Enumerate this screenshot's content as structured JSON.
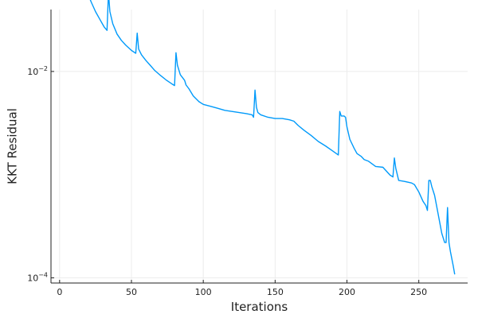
{
  "chart_data": {
    "type": "line",
    "xlabel": "Iterations",
    "ylabel": "KKT Residual",
    "xlim": [
      -6,
      284
    ],
    "ylim_log10": [
      -4.05,
      -1.4
    ],
    "y_scale": "log",
    "grid": true,
    "legend": "none",
    "x_ticks": [
      0,
      50,
      100,
      150,
      200,
      250
    ],
    "x_tick_labels": [
      "0",
      "50",
      "100",
      "150",
      "200",
      "250"
    ],
    "y_ticks": [
      {
        "value": 0.01,
        "base": "10",
        "exponent": "−2"
      },
      {
        "value": 0.0001,
        "base": "10",
        "exponent": "−4"
      }
    ],
    "series": [
      {
        "color": "#009AFA",
        "x": [
          1,
          3,
          6,
          8,
          10,
          12,
          14,
          15,
          16,
          18,
          20,
          22,
          25,
          28,
          31,
          33,
          34,
          35,
          37,
          40,
          43,
          46,
          50,
          53,
          54,
          55,
          57,
          60,
          63,
          66,
          70,
          74,
          78,
          80,
          81,
          82,
          84,
          87,
          88,
          90,
          93,
          97,
          100,
          105,
          110,
          115,
          120,
          125,
          130,
          134,
          135,
          136,
          137,
          138,
          140,
          145,
          150,
          155,
          160,
          163,
          166,
          170,
          175,
          180,
          185,
          190,
          194,
          195,
          196,
          198,
          199,
          200,
          202,
          205,
          207,
          210,
          212,
          215,
          220,
          225,
          230,
          232,
          233,
          234,
          236,
          238,
          240,
          245,
          247,
          250,
          253,
          255,
          256,
          257,
          258,
          259,
          261,
          263,
          266,
          268,
          269,
          270,
          271,
          272,
          274,
          275
        ],
        "y": [
          0.14,
          0.115,
          0.09,
          0.08,
          0.072,
          0.065,
          0.058,
          0.12,
          0.088,
          0.068,
          0.055,
          0.047,
          0.038,
          0.032,
          0.027,
          0.025,
          0.058,
          0.038,
          0.029,
          0.023,
          0.02,
          0.018,
          0.016,
          0.015,
          0.0235,
          0.0165,
          0.0145,
          0.0128,
          0.0115,
          0.0103,
          0.0092,
          0.0083,
          0.0076,
          0.0073,
          0.0152,
          0.0115,
          0.0093,
          0.0082,
          0.0074,
          0.0068,
          0.0058,
          0.0051,
          0.0048,
          0.0046,
          0.0044,
          0.0042,
          0.0041,
          0.004,
          0.0039,
          0.0038,
          0.0036,
          0.0066,
          0.0045,
          0.004,
          0.0038,
          0.0036,
          0.0035,
          0.0035,
          0.0034,
          0.0033,
          0.003,
          0.0027,
          0.0024,
          0.0021,
          0.0019,
          0.0017,
          0.00155,
          0.0041,
          0.0037,
          0.0037,
          0.0036,
          0.0029,
          0.0022,
          0.0018,
          0.0016,
          0.0015,
          0.0014,
          0.00135,
          0.0012,
          0.00118,
          0.00099,
          0.00095,
          0.00145,
          0.00115,
          0.00088,
          0.00087,
          0.00086,
          0.00083,
          0.0008,
          0.00068,
          0.00055,
          0.0005,
          0.00045,
          0.00088,
          0.00088,
          0.00077,
          0.00063,
          0.00045,
          0.00027,
          0.00022,
          0.00022,
          0.00048,
          0.00022,
          0.00018,
          0.00013,
          0.000108
        ]
      }
    ]
  }
}
